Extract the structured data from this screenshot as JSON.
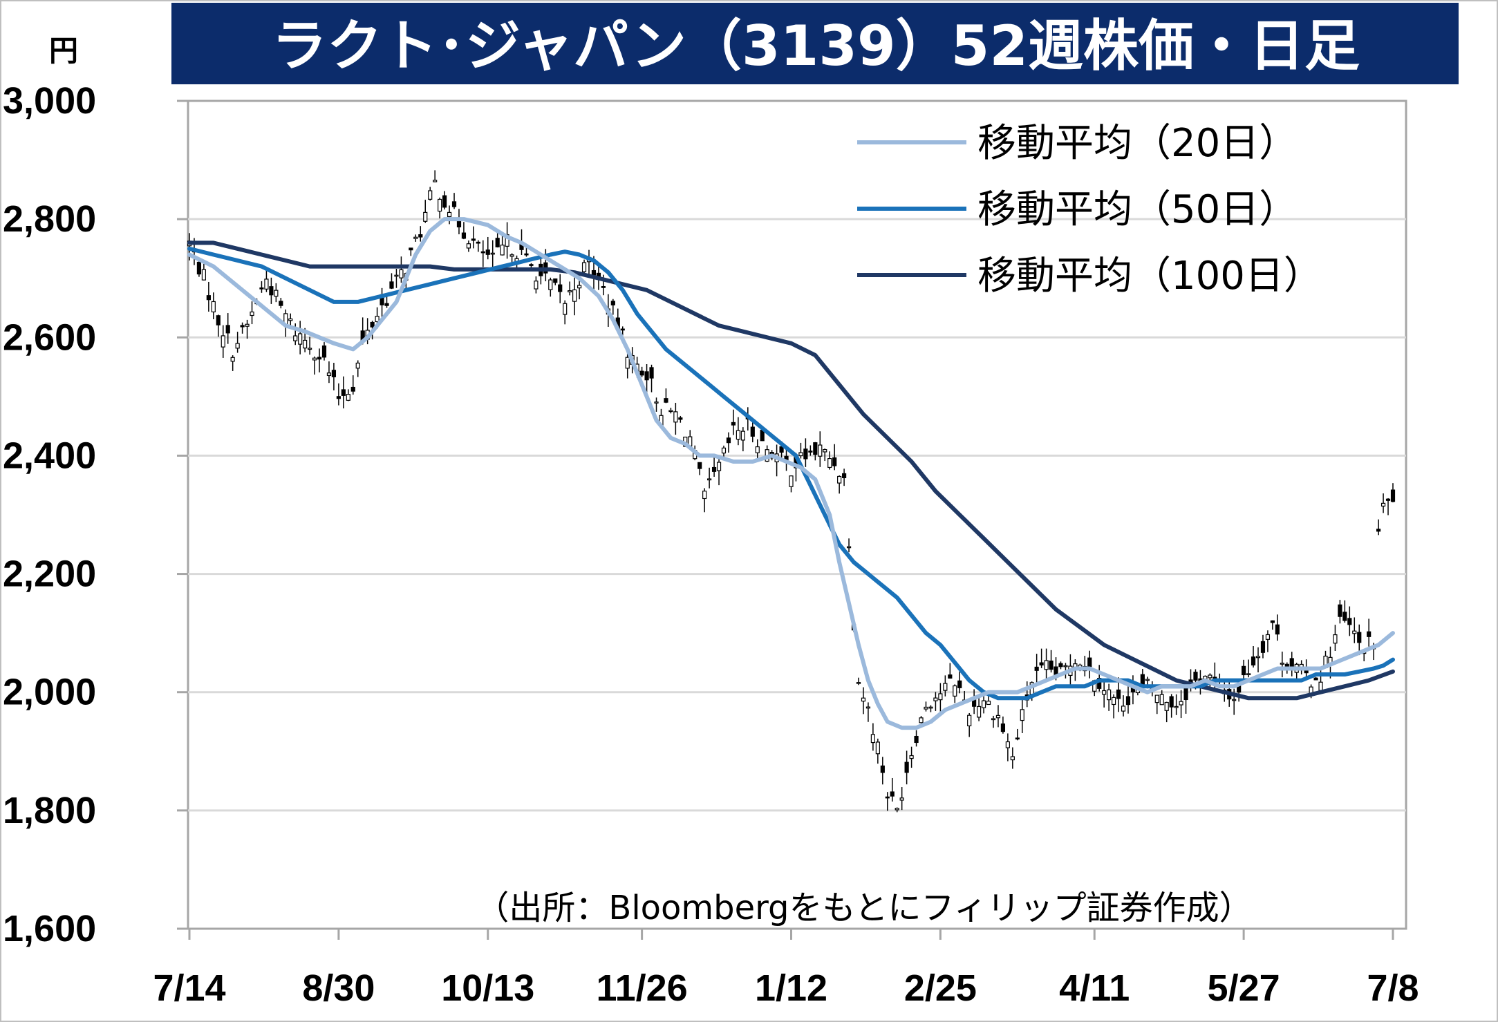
{
  "chart_data": {
    "type": "line",
    "title": "ラクト･ジャパン（3139）52週株価・日足",
    "unit_label": "円",
    "source_note": "（出所：Bloombergをもとにフィリップ証券作成）",
    "ylim": [
      1600,
      3000
    ],
    "y_ticks": [
      {
        "value": 1600,
        "label": "1,600"
      },
      {
        "value": 1800,
        "label": "1,800"
      },
      {
        "value": 2000,
        "label": "2,000"
      },
      {
        "value": 2200,
        "label": "2,200"
      },
      {
        "value": 2400,
        "label": "2,400"
      },
      {
        "value": 2600,
        "label": "2,600"
      },
      {
        "value": 2800,
        "label": "2,800"
      },
      {
        "value": 3000,
        "label": "3,000"
      }
    ],
    "x_range_index": [
      0,
      250
    ],
    "x_ticks": [
      {
        "index": 0,
        "label": "7/14"
      },
      {
        "index": 31,
        "label": "8/30"
      },
      {
        "index": 62,
        "label": "10/13"
      },
      {
        "index": 94,
        "label": "11/26"
      },
      {
        "index": 125,
        "label": "1/12"
      },
      {
        "index": 156,
        "label": "2/25"
      },
      {
        "index": 188,
        "label": "4/11"
      },
      {
        "index": 219,
        "label": "5/27"
      },
      {
        "index": 250,
        "label": "7/8"
      }
    ],
    "grid": true,
    "legend_position": "top-right",
    "candlestick_daily": {
      "up_color": "#ffffff",
      "down_color": "#000000",
      "close_anchors": [
        [
          0,
          2760
        ],
        [
          3,
          2700
        ],
        [
          6,
          2630
        ],
        [
          9,
          2580
        ],
        [
          12,
          2620
        ],
        [
          16,
          2700
        ],
        [
          19,
          2650
        ],
        [
          22,
          2610
        ],
        [
          25,
          2590
        ],
        [
          28,
          2560
        ],
        [
          31,
          2500
        ],
        [
          34,
          2520
        ],
        [
          36,
          2590
        ],
        [
          39,
          2640
        ],
        [
          42,
          2680
        ],
        [
          45,
          2720
        ],
        [
          48,
          2780
        ],
        [
          51,
          2860
        ],
        [
          54,
          2820
        ],
        [
          57,
          2780
        ],
        [
          60,
          2750
        ],
        [
          63,
          2730
        ],
        [
          66,
          2760
        ],
        [
          69,
          2740
        ],
        [
          72,
          2710
        ],
        [
          75,
          2690
        ],
        [
          78,
          2660
        ],
        [
          81,
          2700
        ],
        [
          83,
          2730
        ],
        [
          86,
          2680
        ],
        [
          89,
          2620
        ],
        [
          92,
          2560
        ],
        [
          95,
          2540
        ],
        [
          98,
          2480
        ],
        [
          101,
          2470
        ],
        [
          104,
          2430
        ],
        [
          107,
          2330
        ],
        [
          110,
          2380
        ],
        [
          113,
          2440
        ],
        [
          116,
          2450
        ],
        [
          119,
          2420
        ],
        [
          122,
          2400
        ],
        [
          125,
          2380
        ],
        [
          128,
          2400
        ],
        [
          131,
          2410
        ],
        [
          134,
          2390
        ],
        [
          136,
          2360
        ],
        [
          137,
          2260
        ],
        [
          138,
          2120
        ],
        [
          139,
          2020
        ],
        [
          141,
          1970
        ],
        [
          143,
          1910
        ],
        [
          145,
          1830
        ],
        [
          147,
          1800
        ],
        [
          149,
          1870
        ],
        [
          151,
          1930
        ],
        [
          153,
          1980
        ],
        [
          156,
          2000
        ],
        [
          159,
          2020
        ],
        [
          162,
          1970
        ],
        [
          165,
          1990
        ],
        [
          168,
          1960
        ],
        [
          171,
          1890
        ],
        [
          173,
          1960
        ],
        [
          175,
          2020
        ],
        [
          178,
          2040
        ],
        [
          181,
          2030
        ],
        [
          184,
          2060
        ],
        [
          187,
          2040
        ],
        [
          190,
          2010
        ],
        [
          193,
          1980
        ],
        [
          196,
          2000
        ],
        [
          199,
          2010
        ],
        [
          202,
          1990
        ],
        [
          205,
          1980
        ],
        [
          208,
          2010
        ],
        [
          211,
          2030
        ],
        [
          214,
          2010
        ],
        [
          217,
          1990
        ],
        [
          220,
          2040
        ],
        [
          223,
          2080
        ],
        [
          225,
          2120
        ],
        [
          227,
          2060
        ],
        [
          230,
          2040
        ],
        [
          233,
          2020
        ],
        [
          235,
          2030
        ],
        [
          237,
          2070
        ],
        [
          239,
          2120
        ],
        [
          241,
          2110
        ],
        [
          243,
          2080
        ],
        [
          245,
          2080
        ],
        [
          246,
          2080
        ],
        [
          247,
          2270
        ],
        [
          248,
          2310
        ],
        [
          249,
          2320
        ],
        [
          250,
          2330
        ]
      ]
    },
    "series": [
      {
        "name": "移動平均（20日）",
        "color": "#9bb9dc",
        "points": [
          [
            0,
            2740
          ],
          [
            5,
            2720
          ],
          [
            8,
            2700
          ],
          [
            11,
            2680
          ],
          [
            14,
            2660
          ],
          [
            17,
            2640
          ],
          [
            20,
            2620
          ],
          [
            24,
            2610
          ],
          [
            27,
            2600
          ],
          [
            30,
            2590
          ],
          [
            34,
            2580
          ],
          [
            37,
            2600
          ],
          [
            40,
            2630
          ],
          [
            43,
            2660
          ],
          [
            45,
            2700
          ],
          [
            47,
            2740
          ],
          [
            50,
            2780
          ],
          [
            53,
            2800
          ],
          [
            57,
            2800
          ],
          [
            62,
            2790
          ],
          [
            66,
            2770
          ],
          [
            69,
            2760
          ],
          [
            73,
            2740
          ],
          [
            77,
            2720
          ],
          [
            81,
            2700
          ],
          [
            85,
            2670
          ],
          [
            88,
            2630
          ],
          [
            91,
            2580
          ],
          [
            94,
            2520
          ],
          [
            97,
            2460
          ],
          [
            100,
            2430
          ],
          [
            103,
            2420
          ],
          [
            106,
            2400
          ],
          [
            109,
            2400
          ],
          [
            113,
            2390
          ],
          [
            117,
            2390
          ],
          [
            121,
            2400
          ],
          [
            124,
            2390
          ],
          [
            127,
            2380
          ],
          [
            130,
            2360
          ],
          [
            133,
            2300
          ],
          [
            135,
            2220
          ],
          [
            137,
            2150
          ],
          [
            139,
            2080
          ],
          [
            141,
            2020
          ],
          [
            143,
            1980
          ],
          [
            145,
            1950
          ],
          [
            148,
            1940
          ],
          [
            151,
            1940
          ],
          [
            154,
            1950
          ],
          [
            157,
            1970
          ],
          [
            160,
            1980
          ],
          [
            163,
            1990
          ],
          [
            166,
            2000
          ],
          [
            169,
            2000
          ],
          [
            172,
            2000
          ],
          [
            175,
            2010
          ],
          [
            178,
            2020
          ],
          [
            181,
            2030
          ],
          [
            184,
            2040
          ],
          [
            187,
            2040
          ],
          [
            190,
            2030
          ],
          [
            193,
            2020
          ],
          [
            196,
            2010
          ],
          [
            199,
            2000
          ],
          [
            202,
            2010
          ],
          [
            205,
            2010
          ],
          [
            208,
            2010
          ],
          [
            211,
            2020
          ],
          [
            214,
            2010
          ],
          [
            217,
            2010
          ],
          [
            220,
            2020
          ],
          [
            223,
            2030
          ],
          [
            226,
            2040
          ],
          [
            229,
            2040
          ],
          [
            232,
            2040
          ],
          [
            235,
            2040
          ],
          [
            238,
            2050
          ],
          [
            241,
            2060
          ],
          [
            244,
            2070
          ],
          [
            247,
            2080
          ],
          [
            250,
            2100
          ]
        ]
      },
      {
        "name": "移動平均（50日）",
        "color": "#1a72b9",
        "points": [
          [
            0,
            2750
          ],
          [
            5,
            2740
          ],
          [
            10,
            2730
          ],
          [
            15,
            2720
          ],
          [
            20,
            2700
          ],
          [
            25,
            2680
          ],
          [
            30,
            2660
          ],
          [
            35,
            2660
          ],
          [
            40,
            2670
          ],
          [
            45,
            2680
          ],
          [
            50,
            2690
          ],
          [
            55,
            2700
          ],
          [
            60,
            2710
          ],
          [
            65,
            2720
          ],
          [
            70,
            2730
          ],
          [
            75,
            2740
          ],
          [
            78,
            2745
          ],
          [
            81,
            2740
          ],
          [
            84,
            2730
          ],
          [
            87,
            2710
          ],
          [
            90,
            2680
          ],
          [
            93,
            2640
          ],
          [
            96,
            2610
          ],
          [
            99,
            2580
          ],
          [
            102,
            2560
          ],
          [
            105,
            2540
          ],
          [
            108,
            2520
          ],
          [
            111,
            2500
          ],
          [
            114,
            2480
          ],
          [
            117,
            2460
          ],
          [
            120,
            2440
          ],
          [
            123,
            2420
          ],
          [
            126,
            2400
          ],
          [
            129,
            2350
          ],
          [
            132,
            2300
          ],
          [
            135,
            2250
          ],
          [
            138,
            2220
          ],
          [
            141,
            2200
          ],
          [
            144,
            2180
          ],
          [
            147,
            2160
          ],
          [
            150,
            2130
          ],
          [
            153,
            2100
          ],
          [
            156,
            2080
          ],
          [
            159,
            2050
          ],
          [
            162,
            2020
          ],
          [
            165,
            2000
          ],
          [
            168,
            1990
          ],
          [
            171,
            1990
          ],
          [
            174,
            1990
          ],
          [
            177,
            2000
          ],
          [
            180,
            2010
          ],
          [
            183,
            2010
          ],
          [
            186,
            2010
          ],
          [
            189,
            2020
          ],
          [
            192,
            2020
          ],
          [
            195,
            2020
          ],
          [
            198,
            2010
          ],
          [
            201,
            2010
          ],
          [
            204,
            2010
          ],
          [
            207,
            2010
          ],
          [
            210,
            2010
          ],
          [
            213,
            2020
          ],
          [
            216,
            2020
          ],
          [
            219,
            2020
          ],
          [
            222,
            2020
          ],
          [
            225,
            2020
          ],
          [
            228,
            2020
          ],
          [
            231,
            2020
          ],
          [
            234,
            2030
          ],
          [
            237,
            2030
          ],
          [
            240,
            2030
          ],
          [
            243,
            2035
          ],
          [
            246,
            2040
          ],
          [
            248,
            2045
          ],
          [
            250,
            2055
          ]
        ]
      },
      {
        "name": "移動平均（100日）",
        "color": "#1f3864",
        "points": [
          [
            0,
            2760
          ],
          [
            5,
            2760
          ],
          [
            10,
            2750
          ],
          [
            15,
            2740
          ],
          [
            20,
            2730
          ],
          [
            25,
            2720
          ],
          [
            30,
            2720
          ],
          [
            35,
            2720
          ],
          [
            40,
            2720
          ],
          [
            45,
            2720
          ],
          [
            50,
            2720
          ],
          [
            55,
            2715
          ],
          [
            60,
            2715
          ],
          [
            65,
            2715
          ],
          [
            70,
            2715
          ],
          [
            75,
            2715
          ],
          [
            80,
            2710
          ],
          [
            85,
            2700
          ],
          [
            90,
            2690
          ],
          [
            95,
            2680
          ],
          [
            100,
            2660
          ],
          [
            105,
            2640
          ],
          [
            110,
            2620
          ],
          [
            115,
            2610
          ],
          [
            120,
            2600
          ],
          [
            125,
            2590
          ],
          [
            130,
            2570
          ],
          [
            135,
            2520
          ],
          [
            140,
            2470
          ],
          [
            145,
            2430
          ],
          [
            150,
            2390
          ],
          [
            155,
            2340
          ],
          [
            160,
            2300
          ],
          [
            165,
            2260
          ],
          [
            170,
            2220
          ],
          [
            175,
            2180
          ],
          [
            180,
            2140
          ],
          [
            185,
            2110
          ],
          [
            190,
            2080
          ],
          [
            195,
            2060
          ],
          [
            200,
            2040
          ],
          [
            205,
            2020
          ],
          [
            210,
            2010
          ],
          [
            215,
            2000
          ],
          [
            220,
            1990
          ],
          [
            225,
            1990
          ],
          [
            230,
            1990
          ],
          [
            235,
            2000
          ],
          [
            240,
            2010
          ],
          [
            245,
            2020
          ],
          [
            250,
            2035
          ]
        ]
      }
    ]
  }
}
